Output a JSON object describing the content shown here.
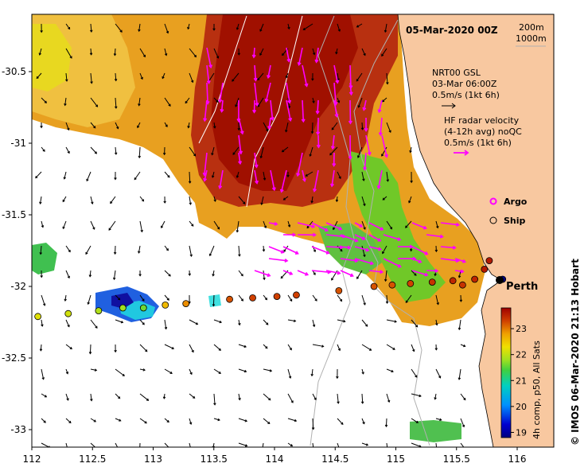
{
  "title": "05-Mar-2020 00Z",
  "depth_contours": {
    "label_200": "200m",
    "label_1000": "1000m"
  },
  "legend": {
    "model": {
      "line1": "NRT00 GSL",
      "line2": "03-Mar 06:00Z",
      "line3": "0.5m/s (1kt 6h)",
      "color": "#000000"
    },
    "radar": {
      "line1": "HF radar velocity",
      "line2": "(4-12h avg) noQC",
      "line3": "0.5m/s (1kt 6h)",
      "color": "#ff00ff"
    },
    "argo": {
      "label": "Argo",
      "color": "#ff00ff"
    },
    "ship": {
      "label": "Ship"
    }
  },
  "city": {
    "name": "Perth"
  },
  "credit": "© IMOS 06-Mar-2020 21:13 Hobart",
  "colorbar": {
    "caption": "4h comp, p50, All Sats",
    "ticks": [
      "19",
      "20",
      "21",
      "22",
      "23"
    ],
    "min": 18.8,
    "max": 23.8
  },
  "axes": {
    "lon_ticks": [
      "112",
      "112.5",
      "113",
      "113.5",
      "114",
      "114.5",
      "115",
      "115.5",
      "116"
    ],
    "lat_ticks": [
      "-30.5",
      "-31",
      "-31.5",
      "-32",
      "-32.5",
      "-33"
    ]
  },
  "ship_track": [
    {
      "lon": 112.05,
      "lat": -32.21,
      "sst": 22.2
    },
    {
      "lon": 112.3,
      "lat": -32.19,
      "sst": 22.1
    },
    {
      "lon": 112.55,
      "lat": -32.17,
      "sst": 21.9
    },
    {
      "lon": 112.75,
      "lat": -32.15,
      "sst": 21.8
    },
    {
      "lon": 112.92,
      "lat": -32.15,
      "sst": 21.6
    },
    {
      "lon": 113.1,
      "lat": -32.13,
      "sst": 22.6
    },
    {
      "lon": 113.27,
      "lat": -32.12,
      "sst": 22.9
    },
    {
      "lon": 113.63,
      "lat": -32.09,
      "sst": 23.2
    },
    {
      "lon": 113.82,
      "lat": -32.08,
      "sst": 23.3
    },
    {
      "lon": 114.02,
      "lat": -32.07,
      "sst": 23.3
    },
    {
      "lon": 114.18,
      "lat": -32.06,
      "sst": 23.3
    },
    {
      "lon": 114.53,
      "lat": -32.03,
      "sst": 23.2
    },
    {
      "lon": 114.82,
      "lat": -32.0,
      "sst": 23.2
    },
    {
      "lon": 114.97,
      "lat": -31.99,
      "sst": 23.2
    },
    {
      "lon": 115.12,
      "lat": -31.98,
      "sst": 23.3
    },
    {
      "lon": 115.3,
      "lat": -31.97,
      "sst": 23.4
    },
    {
      "lon": 115.47,
      "lat": -31.96,
      "sst": 23.5
    },
    {
      "lon": 115.55,
      "lat": -31.99,
      "sst": 23.4
    },
    {
      "lon": 115.65,
      "lat": -31.95,
      "sst": 23.5
    },
    {
      "lon": 115.73,
      "lat": -31.88,
      "sst": 23.6
    },
    {
      "lon": 115.77,
      "lat": -31.82,
      "sst": 23.6
    },
    {
      "lon": 115.88,
      "lat": -31.95,
      "sst": 18.8
    }
  ]
}
